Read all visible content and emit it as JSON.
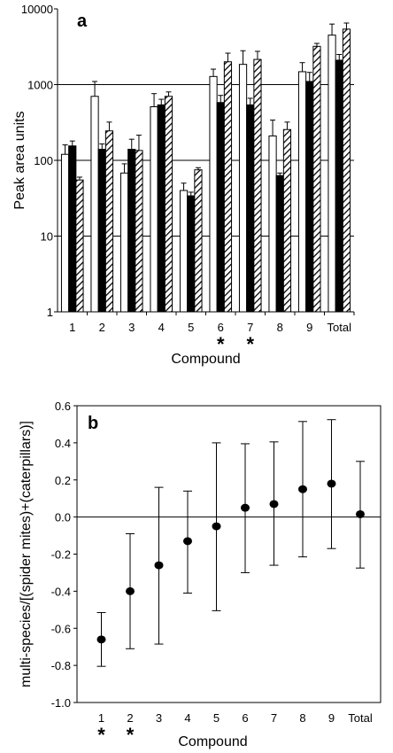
{
  "chart_data": [
    {
      "panel": "a",
      "type": "bar",
      "scale": "log",
      "ylabel": "Peak area units",
      "xlabel": "Compound",
      "ylim": [
        1,
        10000
      ],
      "yticks": [
        "1",
        "10",
        "100",
        "1000",
        "10000"
      ],
      "categories": [
        "1",
        "2",
        "3",
        "4",
        "5",
        "6",
        "7",
        "8",
        "9",
        "Total"
      ],
      "significant": [
        "6",
        "7"
      ],
      "significance_mark": "*",
      "series": [
        {
          "style": "white",
          "values": [
            120,
            700,
            68,
            510,
            40,
            1280,
            1850,
            210,
            1480,
            4500
          ],
          "errors": [
            160,
            1100,
            90,
            760,
            50,
            1600,
            2800,
            340,
            1950,
            6300
          ]
        },
        {
          "style": "black",
          "values": [
            155,
            140,
            140,
            540,
            34,
            580,
            540,
            63,
            1100,
            2100
          ],
          "errors": [
            180,
            165,
            190,
            640,
            38,
            720,
            660,
            68,
            1450,
            2500
          ]
        },
        {
          "style": "hatched",
          "values": [
            55,
            245,
            135,
            700,
            75,
            2000,
            2150,
            255,
            3200,
            5400
          ],
          "errors": [
            60,
            320,
            215,
            800,
            80,
            2600,
            2750,
            320,
            3500,
            6500
          ]
        }
      ]
    },
    {
      "panel": "b",
      "type": "scatter",
      "ylabel": "multi-species/[(spider mites)+(caterpillars)]",
      "xlabel": "Compound",
      "ylim": [
        -1.0,
        0.6
      ],
      "yticks": [
        "0.6",
        "0.4",
        "0.2",
        "0.0",
        "-0.2",
        "-0.4",
        "-0.6",
        "-0.8",
        "-1.0"
      ],
      "categories": [
        "1",
        "2",
        "3",
        "4",
        "5",
        "6",
        "7",
        "8",
        "9",
        "Total"
      ],
      "significant": [
        "1",
        "2"
      ],
      "significance_mark": "*",
      "points": [
        {
          "y": -0.66,
          "lo": -0.805,
          "hi": -0.515
        },
        {
          "y": -0.4,
          "lo": -0.71,
          "hi": -0.09
        },
        {
          "y": -0.26,
          "lo": -0.685,
          "hi": 0.16
        },
        {
          "y": -0.13,
          "lo": -0.41,
          "hi": 0.14
        },
        {
          "y": -0.05,
          "lo": -0.505,
          "hi": 0.4
        },
        {
          "y": 0.05,
          "lo": -0.3,
          "hi": 0.395
        },
        {
          "y": 0.07,
          "lo": -0.26,
          "hi": 0.405
        },
        {
          "y": 0.15,
          "lo": -0.215,
          "hi": 0.515
        },
        {
          "y": 0.18,
          "lo": -0.17,
          "hi": 0.525
        },
        {
          "y": 0.015,
          "lo": -0.275,
          "hi": 0.3
        }
      ]
    }
  ]
}
